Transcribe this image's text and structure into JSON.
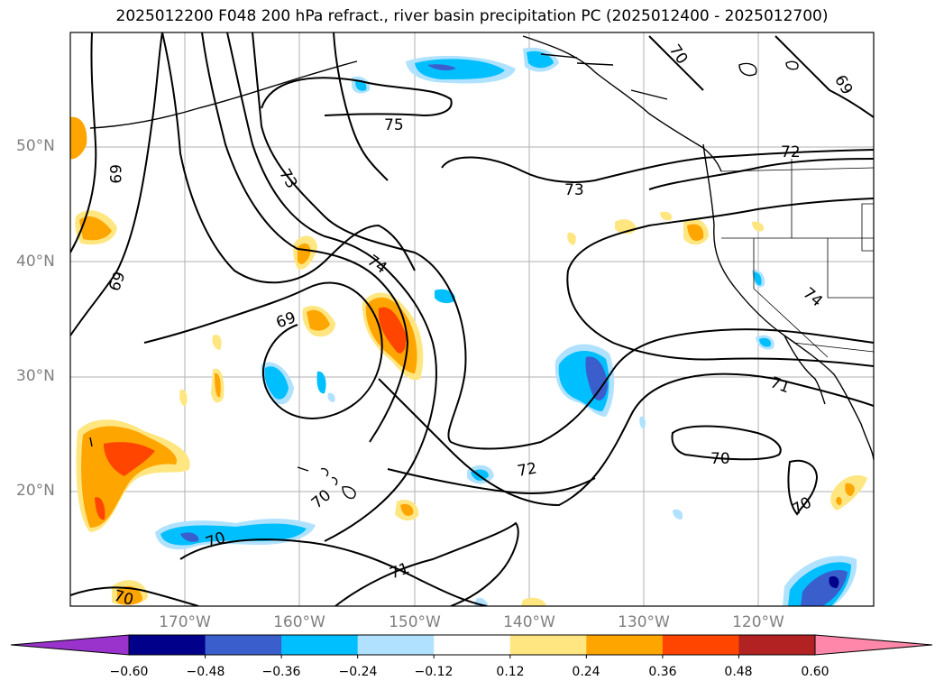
{
  "title": "2025012200 F048 200 hPa refract., river basin precipitation PC (2025012400 - 2025012700)",
  "map": {
    "projection": "PlateCarree",
    "extent": {
      "lon_min": -180,
      "lon_max": -110,
      "lat_min": 10,
      "lat_max": 60
    },
    "gridlines": true,
    "lat_ticks": [
      "50°N",
      "40°N",
      "30°N",
      "20°N"
    ],
    "lon_ticks": [
      "170°W",
      "160°W",
      "150°W",
      "140°W",
      "130°W",
      "120°W"
    ],
    "contour_variable": "200 hPa refractivity",
    "contour_labels": [
      "75",
      "73",
      "74",
      "69",
      "69",
      "73",
      "74",
      "72",
      "71",
      "70",
      "70",
      "72",
      "70",
      "71",
      "70",
      "70",
      "70",
      "69",
      "69"
    ],
    "shaded_variable": "river basin precipitation PC"
  },
  "colorbar": {
    "extend": "both",
    "ticks": [
      "−0.60",
      "−0.48",
      "−0.36",
      "−0.24",
      "−0.12",
      "0.12",
      "0.24",
      "0.36",
      "0.48",
      "0.60"
    ],
    "colors": [
      "#9933cc",
      "#00008b",
      "#3a5fcd",
      "#00bfff",
      "#b0e2ff",
      "#ffffff",
      "#ffe680",
      "#ffa500",
      "#ff4500",
      "#b22222",
      "#ff88aa"
    ]
  }
}
